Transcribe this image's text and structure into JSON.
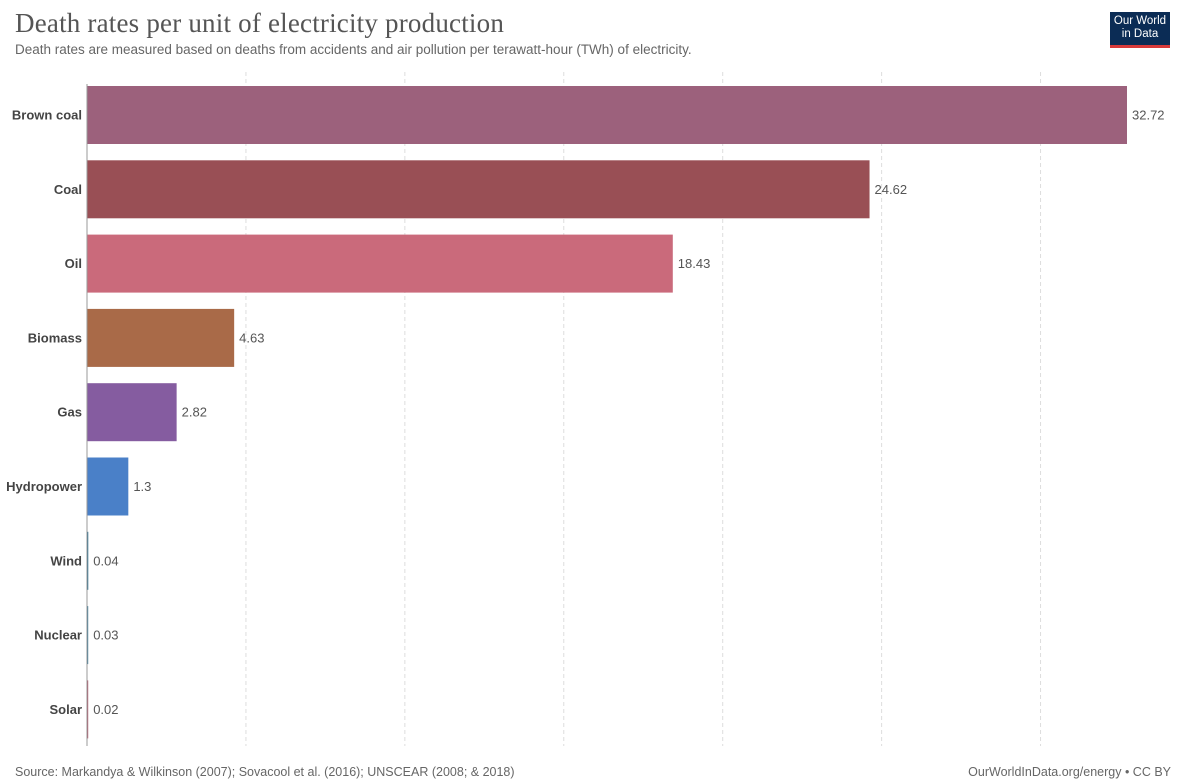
{
  "header": {
    "title": "Death rates per unit of electricity production",
    "subtitle": "Death rates are measured based on deaths from accidents and air pollution per terawatt-hour (TWh) of electricity.",
    "logo_line1": "Our World",
    "logo_line2": "in Data"
  },
  "footer": {
    "source": "Source: Markandya & Wilkinson (2007); Sovacool et al. (2016); UNSCEAR (2008; & 2018)",
    "credit": "OurWorldInData.org/energy • CC BY"
  },
  "chart_data": {
    "type": "bar",
    "orientation": "horizontal",
    "title": "Death rates per unit of electricity production",
    "xlabel": "",
    "ylabel": "",
    "xlim": [
      0,
      33
    ],
    "gridlines": [
      5,
      10,
      15,
      20,
      25,
      30
    ],
    "categories": [
      "Brown coal",
      "Coal",
      "Oil",
      "Biomass",
      "Gas",
      "Hydropower",
      "Wind",
      "Nuclear",
      "Solar"
    ],
    "values": [
      32.72,
      24.62,
      18.43,
      4.63,
      2.82,
      1.3,
      0.04,
      0.03,
      0.02
    ],
    "value_labels": [
      "32.72",
      "24.62",
      "18.43",
      "4.63",
      "2.82",
      "1.3",
      "0.04",
      "0.03",
      "0.02"
    ],
    "colors": [
      "#9c617c",
      "#994f55",
      "#ca6a7b",
      "#a96a48",
      "#855ca0",
      "#4a80c8",
      "#2c6e8f",
      "#3f7d9a",
      "#b0566a"
    ]
  }
}
